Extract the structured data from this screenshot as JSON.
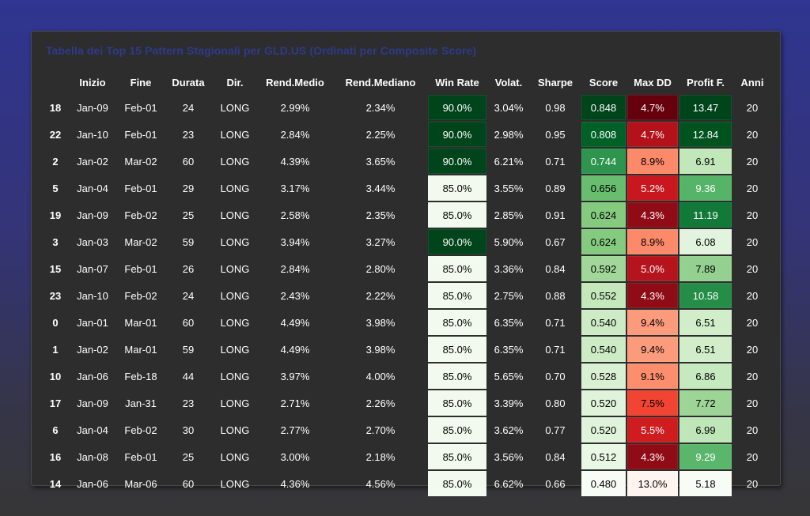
{
  "title": "Tabella dei Top 15 Pattern Stagionali per GLD.US (Ordinati per Composite Score)",
  "columns": [
    "",
    "Inizio",
    "Fine",
    "Durata",
    "Dir.",
    "Rend.Medio",
    "Rend.Mediano",
    "Win Rate",
    "Volat.",
    "Sharpe",
    "Score",
    "Max DD",
    "Profit F.",
    "Anni"
  ],
  "rows": [
    {
      "id": "18",
      "start": "Jan-09",
      "end": "Feb-01",
      "dur": "24",
      "dir": "LONG",
      "mean": "2.99%",
      "median": "2.34%",
      "win": "90.0%",
      "vol": "3.04%",
      "sharpe": "0.98",
      "score": "0.848",
      "maxdd": "4.7%",
      "pf": "13.47",
      "years": "20",
      "win_bg": "#00441b",
      "win_fg": "#ffffff",
      "score_bg": "#00441b",
      "score_fg": "#ffffff",
      "dd_bg": "#67000d",
      "dd_fg": "#ffffff",
      "pf_bg": "#00441b",
      "pf_fg": "#ffffff"
    },
    {
      "id": "22",
      "start": "Jan-10",
      "end": "Feb-01",
      "dur": "23",
      "dir": "LONG",
      "mean": "2.84%",
      "median": "2.25%",
      "win": "90.0%",
      "vol": "2.98%",
      "sharpe": "0.95",
      "score": "0.808",
      "maxdd": "4.7%",
      "pf": "12.84",
      "years": "20",
      "win_bg": "#00441b",
      "win_fg": "#ffffff",
      "score_bg": "#006127",
      "score_fg": "#ffffff",
      "dd_bg": "#b3121b",
      "dd_fg": "#ffffff",
      "pf_bg": "#00521f",
      "pf_fg": "#ffffff"
    },
    {
      "id": "2",
      "start": "Jan-02",
      "end": "Mar-02",
      "dur": "60",
      "dir": "LONG",
      "mean": "4.39%",
      "median": "3.65%",
      "win": "90.0%",
      "vol": "6.21%",
      "sharpe": "0.71",
      "score": "0.744",
      "maxdd": "8.9%",
      "pf": "6.91",
      "years": "20",
      "win_bg": "#00441b",
      "win_fg": "#ffffff",
      "score_bg": "#2d954d",
      "score_fg": "#ffffff",
      "dd_bg": "#fc8969",
      "dd_fg": "#000000",
      "pf_bg": "#c2e7bb",
      "pf_fg": "#000000"
    },
    {
      "id": "5",
      "start": "Jan-04",
      "end": "Feb-01",
      "dur": "29",
      "dir": "LONG",
      "mean": "3.17%",
      "median": "3.44%",
      "win": "85.0%",
      "vol": "3.55%",
      "sharpe": "0.89",
      "score": "0.656",
      "maxdd": "5.2%",
      "pf": "9.36",
      "years": "20",
      "win_bg": "#f2faef",
      "win_fg": "#000000",
      "score_bg": "#68bd6e",
      "score_fg": "#000000",
      "dd_bg": "#c8171e",
      "dd_fg": "#ffffff",
      "pf_bg": "#55b467",
      "pf_fg": "#ffffff"
    },
    {
      "id": "19",
      "start": "Jan-09",
      "end": "Feb-02",
      "dur": "25",
      "dir": "LONG",
      "mean": "2.58%",
      "median": "2.35%",
      "win": "85.0%",
      "vol": "2.85%",
      "sharpe": "0.91",
      "score": "0.624",
      "maxdd": "4.3%",
      "pf": "11.19",
      "years": "20",
      "win_bg": "#f2faef",
      "win_fg": "#000000",
      "score_bg": "#85cb7f",
      "score_fg": "#000000",
      "dd_bg": "#8f0b16",
      "dd_fg": "#ffffff",
      "pf_bg": "#127a38",
      "pf_fg": "#ffffff"
    },
    {
      "id": "3",
      "start": "Jan-03",
      "end": "Mar-02",
      "dur": "59",
      "dir": "LONG",
      "mean": "3.94%",
      "median": "3.27%",
      "win": "90.0%",
      "vol": "5.90%",
      "sharpe": "0.67",
      "score": "0.624",
      "maxdd": "8.9%",
      "pf": "6.08",
      "years": "20",
      "win_bg": "#00441b",
      "win_fg": "#ffffff",
      "score_bg": "#85cb7f",
      "score_fg": "#000000",
      "dd_bg": "#fc8969",
      "dd_fg": "#000000",
      "pf_bg": "#e2f4dd",
      "pf_fg": "#000000"
    },
    {
      "id": "15",
      "start": "Jan-07",
      "end": "Feb-01",
      "dur": "26",
      "dir": "LONG",
      "mean": "2.84%",
      "median": "2.80%",
      "win": "85.0%",
      "vol": "3.36%",
      "sharpe": "0.84",
      "score": "0.592",
      "maxdd": "5.0%",
      "pf": "7.89",
      "years": "20",
      "win_bg": "#f2faef",
      "win_fg": "#000000",
      "score_bg": "#a1d899",
      "score_fg": "#000000",
      "dd_bg": "#b6141c",
      "dd_fg": "#ffffff",
      "pf_bg": "#94d08f",
      "pf_fg": "#000000"
    },
    {
      "id": "23",
      "start": "Jan-10",
      "end": "Feb-02",
      "dur": "24",
      "dir": "LONG",
      "mean": "2.43%",
      "median": "2.22%",
      "win": "85.0%",
      "vol": "2.75%",
      "sharpe": "0.88",
      "score": "0.552",
      "maxdd": "4.3%",
      "pf": "10.58",
      "years": "20",
      "win_bg": "#f2faef",
      "win_fg": "#000000",
      "score_bg": "#c4e8bc",
      "score_fg": "#000000",
      "dd_bg": "#8f0b16",
      "dd_fg": "#ffffff",
      "pf_bg": "#258d47",
      "pf_fg": "#ffffff"
    },
    {
      "id": "0",
      "start": "Jan-01",
      "end": "Mar-01",
      "dur": "60",
      "dir": "LONG",
      "mean": "4.49%",
      "median": "3.98%",
      "win": "85.0%",
      "vol": "6.35%",
      "sharpe": "0.71",
      "score": "0.540",
      "maxdd": "9.4%",
      "pf": "6.51",
      "years": "20",
      "win_bg": "#f2faef",
      "win_fg": "#000000",
      "score_bg": "#cdecc6",
      "score_fg": "#000000",
      "dd_bg": "#fc9a7c",
      "dd_fg": "#000000",
      "pf_bg": "#d1edca",
      "pf_fg": "#000000"
    },
    {
      "id": "1",
      "start": "Jan-02",
      "end": "Mar-01",
      "dur": "59",
      "dir": "LONG",
      "mean": "4.49%",
      "median": "3.98%",
      "win": "85.0%",
      "vol": "6.35%",
      "sharpe": "0.71",
      "score": "0.540",
      "maxdd": "9.4%",
      "pf": "6.51",
      "years": "20",
      "win_bg": "#f2faef",
      "win_fg": "#000000",
      "score_bg": "#cdecc6",
      "score_fg": "#000000",
      "dd_bg": "#fc9a7c",
      "dd_fg": "#000000",
      "pf_bg": "#d1edca",
      "pf_fg": "#000000"
    },
    {
      "id": "10",
      "start": "Jan-06",
      "end": "Feb-18",
      "dur": "44",
      "dir": "LONG",
      "mean": "3.97%",
      "median": "4.00%",
      "win": "85.0%",
      "vol": "5.65%",
      "sharpe": "0.70",
      "score": "0.528",
      "maxdd": "9.1%",
      "pf": "6.86",
      "years": "20",
      "win_bg": "#f2faef",
      "win_fg": "#000000",
      "score_bg": "#d9f0d3",
      "score_fg": "#000000",
      "dd_bg": "#fc8d6d",
      "dd_fg": "#000000",
      "pf_bg": "#c6e9c0",
      "pf_fg": "#000000"
    },
    {
      "id": "17",
      "start": "Jan-09",
      "end": "Jan-31",
      "dur": "23",
      "dir": "LONG",
      "mean": "2.71%",
      "median": "2.26%",
      "win": "85.0%",
      "vol": "3.39%",
      "sharpe": "0.80",
      "score": "0.520",
      "maxdd": "7.5%",
      "pf": "7.72",
      "years": "20",
      "win_bg": "#f2faef",
      "win_fg": "#000000",
      "score_bg": "#e0f3db",
      "score_fg": "#000000",
      "dd_bg": "#f14432",
      "dd_fg": "#000000",
      "pf_bg": "#9dd596",
      "pf_fg": "#000000"
    },
    {
      "id": "6",
      "start": "Jan-04",
      "end": "Feb-02",
      "dur": "30",
      "dir": "LONG",
      "mean": "2.77%",
      "median": "2.70%",
      "win": "85.0%",
      "vol": "3.62%",
      "sharpe": "0.77",
      "score": "0.520",
      "maxdd": "5.5%",
      "pf": "6.99",
      "years": "20",
      "win_bg": "#f2faef",
      "win_fg": "#000000",
      "score_bg": "#e0f3db",
      "score_fg": "#000000",
      "dd_bg": "#cf1c1f",
      "dd_fg": "#ffffff",
      "pf_bg": "#bfe6b8",
      "pf_fg": "#000000"
    },
    {
      "id": "16",
      "start": "Jan-08",
      "end": "Feb-01",
      "dur": "25",
      "dir": "LONG",
      "mean": "3.00%",
      "median": "2.18%",
      "win": "85.0%",
      "vol": "3.56%",
      "sharpe": "0.84",
      "score": "0.512",
      "maxdd": "4.3%",
      "pf": "9.29",
      "years": "20",
      "win_bg": "#f2faef",
      "win_fg": "#000000",
      "score_bg": "#e9f7e5",
      "score_fg": "#000000",
      "dd_bg": "#8f0b16",
      "dd_fg": "#ffffff",
      "pf_bg": "#59b66a",
      "pf_fg": "#ffffff"
    },
    {
      "id": "14",
      "start": "Jan-06",
      "end": "Mar-06",
      "dur": "60",
      "dir": "LONG",
      "mean": "4.36%",
      "median": "4.56%",
      "win": "85.0%",
      "vol": "6.62%",
      "sharpe": "0.66",
      "score": "0.480",
      "maxdd": "13.0%",
      "pf": "5.18",
      "years": "20",
      "win_bg": "#f2faef",
      "win_fg": "#000000",
      "score_bg": "#f7fcf5",
      "score_fg": "#000000",
      "dd_bg": "#fff5f0",
      "dd_fg": "#000000",
      "pf_bg": "#f7fcf5",
      "pf_fg": "#000000"
    }
  ]
}
